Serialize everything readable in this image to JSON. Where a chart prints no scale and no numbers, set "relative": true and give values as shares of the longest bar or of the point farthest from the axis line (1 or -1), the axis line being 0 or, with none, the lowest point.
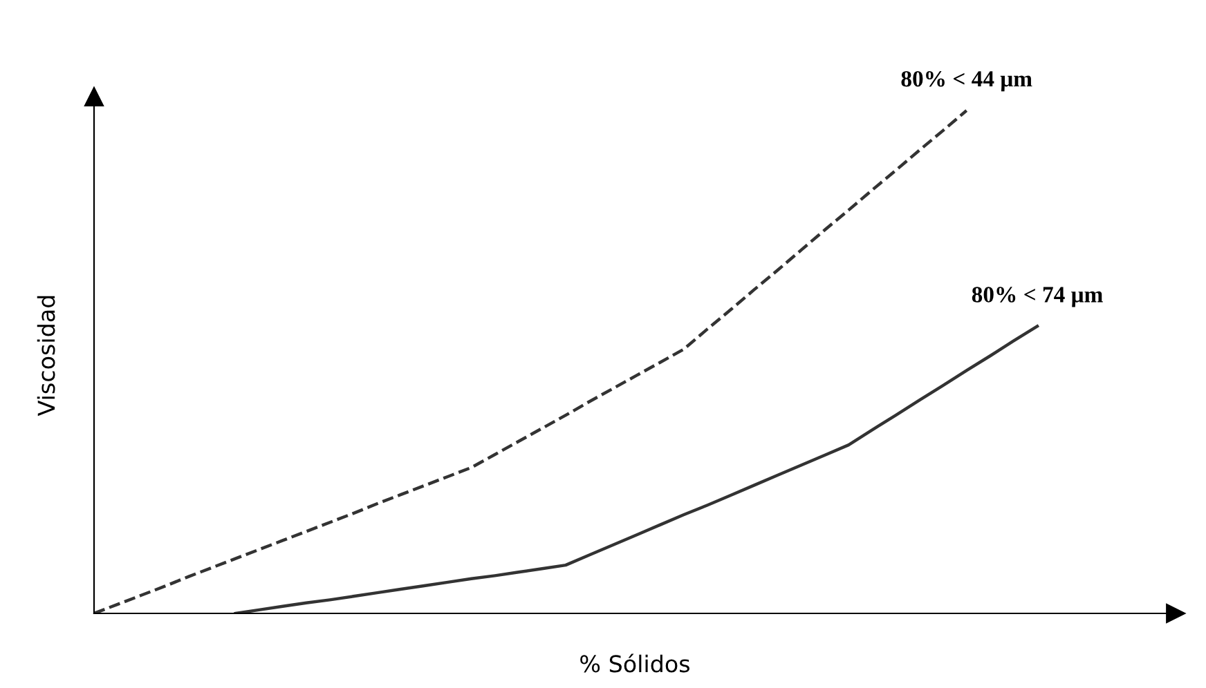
{
  "chart_data": {
    "type": "line",
    "relative": true,
    "xlabel": "% Sólidos",
    "ylabel": "Viscosidad",
    "legend": false,
    "marker": "none",
    "categories": [
      null,
      null,
      null,
      null,
      null,
      null,
      null,
      null,
      null,
      null,
      null,
      null,
      null,
      null,
      null,
      null,
      null,
      null,
      null,
      null,
      null,
      null,
      null,
      null,
      null,
      null,
      null,
      null,
      null,
      null,
      null,
      null,
      null,
      null,
      null,
      null,
      null,
      null,
      null,
      null,
      null
    ],
    "series": [
      {
        "name": "80% < 44 μm",
        "color": "#333333",
        "line_style": "dashed",
        "values": [
          0,
          0.018,
          0.036,
          0.054,
          0.073,
          0.091,
          0.109,
          0.127,
          0.145,
          0.163,
          0.181,
          0.199,
          0.218,
          0.236,
          0.254,
          0.272,
          0.29,
          0.316,
          0.342,
          0.368,
          0.394,
          0.421,
          0.447,
          0.473,
          0.499,
          0.525,
          0.565,
          0.604,
          0.644,
          0.683,
          0.723,
          0.763,
          0.802,
          0.842,
          0.881,
          0.921,
          0.96,
          1,
          null,
          null,
          null
        ]
      },
      {
        "name": "80% < 74 μm",
        "color": "#333333",
        "line_style": "solid",
        "values": [
          null,
          null,
          null,
          null,
          null,
          null,
          0,
          0.007,
          0.014,
          0.021,
          0.027,
          0.034,
          0.041,
          0.048,
          0.055,
          0.062,
          0.069,
          0.075,
          0.082,
          0.089,
          0.096,
          0.116,
          0.136,
          0.156,
          0.176,
          0.196,
          0.215,
          0.235,
          0.255,
          0.275,
          0.295,
          0.315,
          0.335,
          0.365,
          0.394,
          0.424,
          0.453,
          0.483,
          0.512,
          0.542,
          0.571
        ]
      }
    ]
  }
}
